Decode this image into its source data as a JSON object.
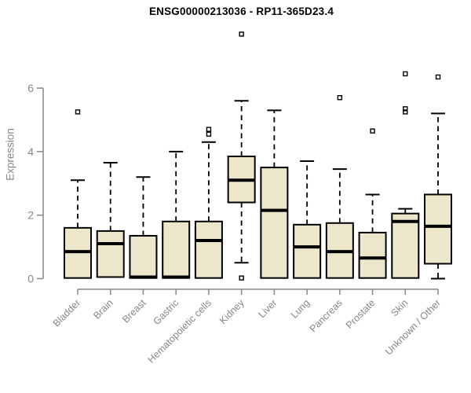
{
  "chart_data": {
    "type": "boxplot",
    "title": "ENSG00000213036 - RP11-365D23.4",
    "ylabel": "Expression",
    "xlabel": "",
    "ylim": [
      0,
      6
    ],
    "yticks": [
      0,
      2,
      4,
      6
    ],
    "grid": false,
    "legend": false,
    "categories": [
      "Bladder",
      "Brain",
      "Breast",
      "Gastric",
      "Hematopoietic cells",
      "Kidney",
      "Liver",
      "Lung",
      "Pancreas",
      "Prostate",
      "Skin",
      "Unknown / Other"
    ],
    "series": [
      {
        "name": "Bladder",
        "whisker_low": 0.02,
        "q1": 0.02,
        "median": 0.85,
        "q3": 1.6,
        "whisker_high": 3.1,
        "outliers": [
          5.25
        ]
      },
      {
        "name": "Brain",
        "whisker_low": 0.05,
        "q1": 0.05,
        "median": 1.1,
        "q3": 1.5,
        "whisker_high": 3.65,
        "outliers": []
      },
      {
        "name": "Breast",
        "whisker_low": 0.02,
        "q1": 0.02,
        "median": 0.05,
        "q3": 1.35,
        "whisker_high": 3.2,
        "outliers": []
      },
      {
        "name": "Gastric",
        "whisker_low": 0.02,
        "q1": 0.02,
        "median": 0.05,
        "q3": 1.8,
        "whisker_high": 4.0,
        "outliers": []
      },
      {
        "name": "Hematopoietic cells",
        "whisker_low": 0.02,
        "q1": 0.02,
        "median": 1.2,
        "q3": 1.8,
        "whisker_high": 4.3,
        "outliers": [
          4.55,
          4.7
        ]
      },
      {
        "name": "Kidney",
        "whisker_low": 0.5,
        "q1": 2.4,
        "median": 3.1,
        "q3": 3.85,
        "whisker_high": 5.6,
        "outliers": [
          0.02,
          7.7
        ]
      },
      {
        "name": "Liver",
        "whisker_low": 0.02,
        "q1": 0.02,
        "median": 2.15,
        "q3": 3.5,
        "whisker_high": 5.3,
        "outliers": []
      },
      {
        "name": "Lung",
        "whisker_low": 0.02,
        "q1": 0.02,
        "median": 1.0,
        "q3": 1.7,
        "whisker_high": 3.7,
        "outliers": []
      },
      {
        "name": "Pancreas",
        "whisker_low": 0.02,
        "q1": 0.02,
        "median": 0.85,
        "q3": 1.75,
        "whisker_high": 3.45,
        "outliers": [
          5.7
        ]
      },
      {
        "name": "Prostate",
        "whisker_low": 0.02,
        "q1": 0.02,
        "median": 0.65,
        "q3": 1.45,
        "whisker_high": 2.65,
        "outliers": [
          4.65
        ]
      },
      {
        "name": "Skin",
        "whisker_low": 0.02,
        "q1": 0.02,
        "median": 1.8,
        "q3": 2.05,
        "whisker_high": 2.2,
        "outliers": [
          5.25,
          5.35,
          6.45
        ]
      },
      {
        "name": "Unknown / Other",
        "whisker_low": 0.0,
        "q1": 0.47,
        "median": 1.65,
        "q3": 2.65,
        "whisker_high": 5.2,
        "outliers": [
          6.35
        ]
      }
    ],
    "colors": {
      "background": "#ffffff",
      "box_fill": "#ece7cb",
      "box_stroke": "#000000",
      "median": "#000000",
      "whisker": "#000000",
      "outlier": "#000000",
      "axis": "#878787",
      "title": "#000000"
    }
  }
}
